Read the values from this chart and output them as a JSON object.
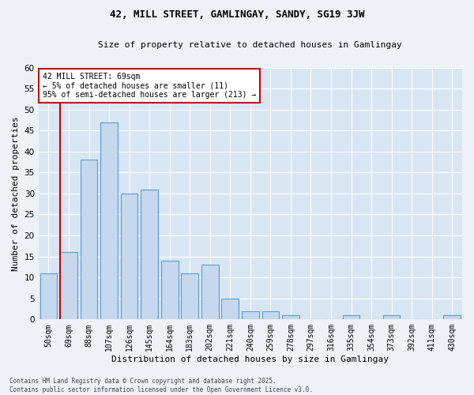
{
  "title_line1": "42, MILL STREET, GAMLINGAY, SANDY, SG19 3JW",
  "title_line2": "Size of property relative to detached houses in Gamlingay",
  "xlabel": "Distribution of detached houses by size in Gamlingay",
  "ylabel": "Number of detached properties",
  "categories": [
    "50sqm",
    "69sqm",
    "88sqm",
    "107sqm",
    "126sqm",
    "145sqm",
    "164sqm",
    "183sqm",
    "202sqm",
    "221sqm",
    "240sqm",
    "259sqm",
    "278sqm",
    "297sqm",
    "316sqm",
    "335sqm",
    "354sqm",
    "373sqm",
    "392sqm",
    "411sqm",
    "430sqm"
  ],
  "values": [
    11,
    16,
    38,
    47,
    30,
    31,
    14,
    11,
    13,
    5,
    2,
    2,
    1,
    0,
    0,
    1,
    0,
    1,
    0,
    0,
    1
  ],
  "bar_color": "#c5d8ed",
  "bar_edge_color": "#5b9bd5",
  "highlight_bar_index": 1,
  "highlight_line_color": "#cc0000",
  "ylim": [
    0,
    60
  ],
  "yticks": [
    0,
    5,
    10,
    15,
    20,
    25,
    30,
    35,
    40,
    45,
    50,
    55,
    60
  ],
  "annotation_text": "42 MILL STREET: 69sqm\n← 5% of detached houses are smaller (11)\n95% of semi-detached houses are larger (213) →",
  "footer_text": "Contains HM Land Registry data © Crown copyright and database right 2025.\nContains public sector information licensed under the Open Government Licence v3.0.",
  "bg_color": "#eef2f7",
  "grid_color": "#ffffff",
  "ax_bg_color": "#d8e6f3",
  "title_fontsize": 9,
  "subtitle_fontsize": 8,
  "ylabel_fontsize": 8,
  "xlabel_fontsize": 8
}
